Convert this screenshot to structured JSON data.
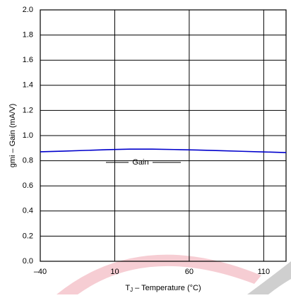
{
  "chart_data": {
    "type": "line",
    "x_label_parts": [
      "T",
      "J",
      " – Temperature (°C)"
    ],
    "y_label": "gmi – Gain (mA/V)",
    "annotation": "Gain",
    "x": [
      -40,
      -25,
      -10,
      5,
      20,
      35,
      50,
      65,
      80,
      95,
      110,
      125
    ],
    "series": [
      {
        "name": "Gain",
        "color": "#0000cc",
        "values": [
          0.871,
          0.876,
          0.882,
          0.888,
          0.892,
          0.892,
          0.889,
          0.885,
          0.88,
          0.875,
          0.87,
          0.865
        ]
      }
    ],
    "xlim": [
      -40,
      125
    ],
    "xticks": [
      {
        "value": -40,
        "label": "–40"
      },
      10,
      60,
      110
    ],
    "ylim": [
      0,
      2
    ],
    "yticks": [
      {
        "value": 0,
        "label": "0.0"
      },
      0.2,
      0.4,
      0.6,
      0.8,
      {
        "value": 1,
        "label": "1.0"
      },
      1.2,
      1.4,
      1.6,
      1.8,
      {
        "value": 2,
        "label": "2.0"
      }
    ],
    "grid": true
  }
}
